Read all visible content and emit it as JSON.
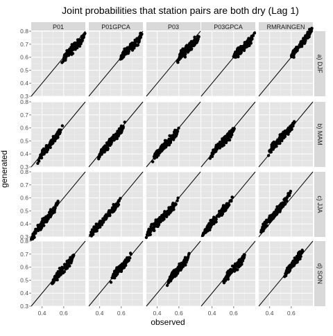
{
  "chart_data": {
    "type": "scatter",
    "title": "Joint probabilities that station pairs are both dry (Lag 1)",
    "xlabel": "observed",
    "ylabel": "generated",
    "columns": [
      "P01",
      "P01GPCA",
      "P03",
      "P03GPCA",
      "RMRAINGEN"
    ],
    "rows": [
      "a) DJF",
      "b) MAM",
      "c) JJA",
      "d) SON"
    ],
    "xlim": [
      0.3,
      0.8
    ],
    "ylim": [
      0.3,
      0.8
    ],
    "x_ticks": [
      "0.4",
      "0.6"
    ],
    "y_ticks": [
      "0.3",
      "0.4",
      "0.5",
      "0.6",
      "0.7",
      "0.8"
    ],
    "reference_line": "y = x",
    "grid": true,
    "panels": [
      [
        {
          "x": [
            0.6,
            0.78
          ],
          "y": [
            0.6,
            0.74
          ]
        },
        {
          "x": [
            0.6,
            0.78
          ],
          "y": [
            0.61,
            0.75
          ]
        },
        {
          "x": [
            0.6,
            0.78
          ],
          "y": [
            0.6,
            0.74
          ]
        },
        {
          "x": [
            0.6,
            0.78
          ],
          "y": [
            0.61,
            0.75
          ]
        },
        {
          "x": [
            0.6,
            0.78
          ],
          "y": [
            0.61,
            0.79
          ]
        }
      ],
      [
        {
          "x": [
            0.38,
            0.57
          ],
          "y": [
            0.38,
            0.57
          ]
        },
        {
          "x": [
            0.4,
            0.62
          ],
          "y": [
            0.4,
            0.6
          ]
        },
        {
          "x": [
            0.37,
            0.59
          ],
          "y": [
            0.38,
            0.57
          ]
        },
        {
          "x": [
            0.4,
            0.6
          ],
          "y": [
            0.41,
            0.58
          ]
        },
        {
          "x": [
            0.4,
            0.62
          ],
          "y": [
            0.43,
            0.62
          ]
        }
      ],
      [
        {
          "x": [
            0.31,
            0.54
          ],
          "y": [
            0.31,
            0.54
          ]
        },
        {
          "x": [
            0.31,
            0.58
          ],
          "y": [
            0.32,
            0.56
          ]
        },
        {
          "x": [
            0.31,
            0.58
          ],
          "y": [
            0.33,
            0.56
          ]
        },
        {
          "x": [
            0.32,
            0.58
          ],
          "y": [
            0.33,
            0.58
          ]
        },
        {
          "x": [
            0.32,
            0.58
          ],
          "y": [
            0.35,
            0.61
          ]
        }
      ],
      [
        {
          "x": [
            0.5,
            0.68
          ],
          "y": [
            0.5,
            0.66
          ]
        },
        {
          "x": [
            0.52,
            0.68
          ],
          "y": [
            0.53,
            0.67
          ]
        },
        {
          "x": [
            0.51,
            0.68
          ],
          "y": [
            0.51,
            0.66
          ]
        },
        {
          "x": [
            0.52,
            0.69
          ],
          "y": [
            0.52,
            0.66
          ]
        },
        {
          "x": [
            0.55,
            0.7
          ],
          "y": [
            0.56,
            0.71
          ]
        }
      ]
    ]
  }
}
